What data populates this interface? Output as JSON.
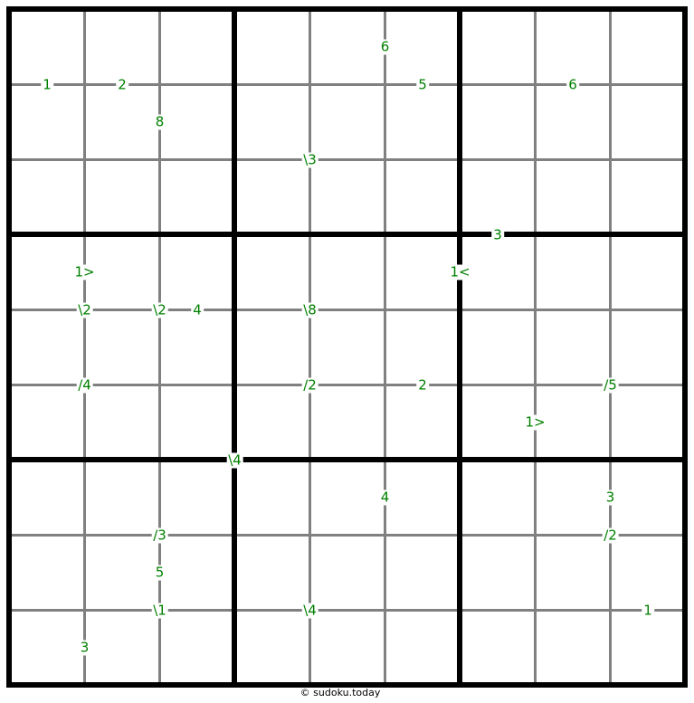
{
  "puzzle": {
    "size": 9,
    "box": 3,
    "clue_color": "#008000",
    "clues": [
      "6",
      "1",
      "2",
      "5",
      "6",
      "8",
      "\\3",
      "3",
      "1>",
      "1<",
      "\\2",
      "\\2",
      "4",
      "\\8",
      "/4",
      "/2",
      "2",
      "/5",
      "1>",
      "\\4",
      "4",
      "3",
      "/3",
      "/2",
      "5",
      "\\1",
      "\\4",
      "1",
      "3"
    ]
  },
  "footer": {
    "copyright": "© sudoku.today"
  }
}
